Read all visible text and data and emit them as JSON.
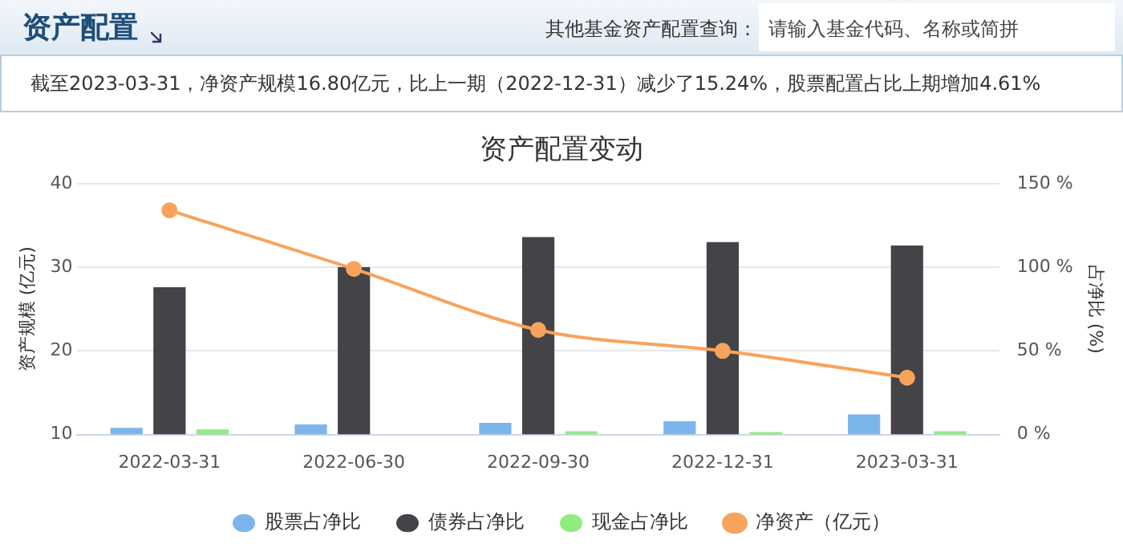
{
  "chart_data": {
    "type": "bar",
    "title": "资产配置变动",
    "ylabel": "资产规模 (亿元)",
    "y2label": "占净比 (%)",
    "categories": [
      "2022-03-31",
      "2022-06-30",
      "2022-09-30",
      "2022-12-31",
      "2023-03-31"
    ],
    "series": [
      {
        "name": "股票占净比",
        "color": "#7cb5ec",
        "axis": "y2",
        "values": [
          4,
          6,
          7,
          8,
          12
        ]
      },
      {
        "name": "债券占净比",
        "color": "#434348",
        "axis": "y2",
        "values": [
          88,
          100,
          118,
          115,
          113
        ]
      },
      {
        "name": "现金占净比",
        "color": "#90ed7d",
        "axis": "y2",
        "values": [
          3,
          null,
          2,
          1.5,
          2
        ]
      },
      {
        "name": "净资产（亿元）",
        "type": "line",
        "color": "#f7a35c",
        "values": [
          36.8,
          29.8,
          22.5,
          20.0,
          16.8
        ]
      }
    ],
    "ylim": [
      10,
      40
    ],
    "yticks": [
      10,
      20,
      30,
      40
    ],
    "y2lim": [
      0,
      150
    ],
    "y2ticks": [
      {
        "value": 0,
        "label": "0 %"
      },
      {
        "value": 50,
        "label": "50 %"
      },
      {
        "value": 100,
        "label": "100 %"
      },
      {
        "value": 150,
        "label": "150 %"
      }
    ],
    "grid": "y",
    "legend": "bottom",
    "marker": "circle",
    "annotations": [
      "资产配置",
      "其他基金资产配置查询：",
      "请输入基金代码、名称或简拼",
      "截至2023-03-31，净资产规模16.80亿元，比上一期（2022-12-31）减少了15.24%，股票配置占比上期增加4.61%"
    ]
  }
}
